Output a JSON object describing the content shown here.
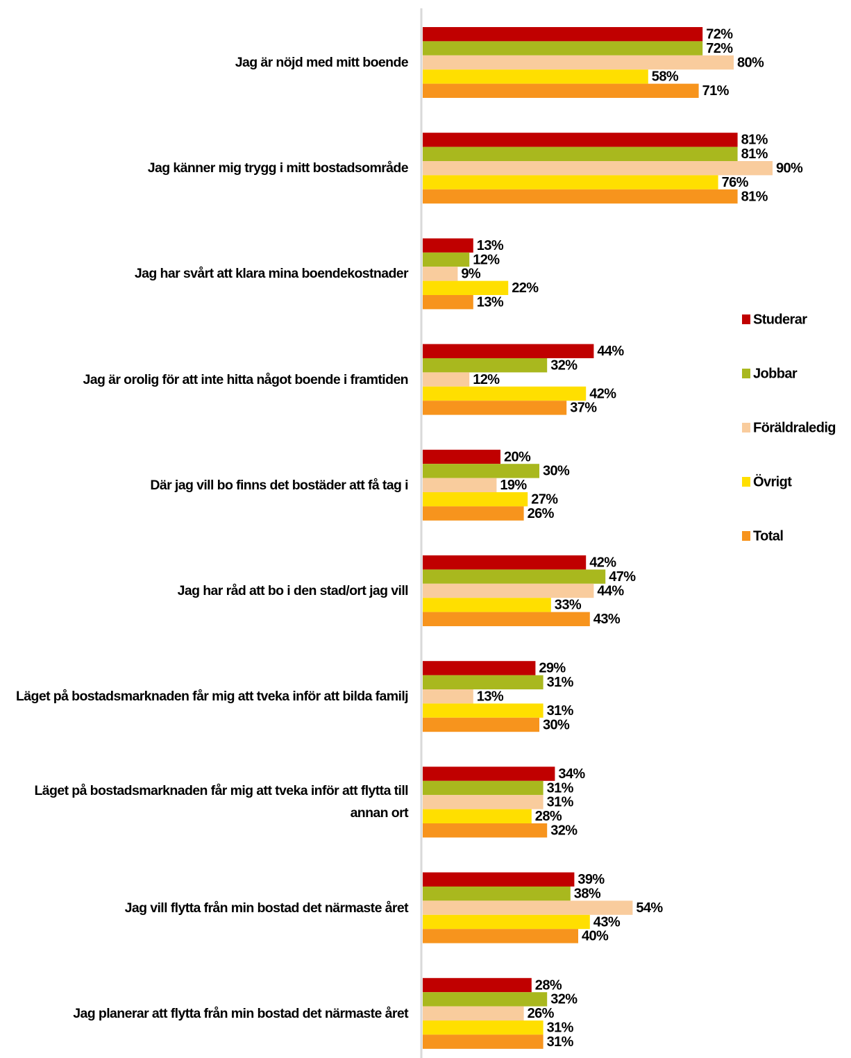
{
  "chart_data": {
    "type": "bar",
    "orientation": "horizontal",
    "categories": [
      "Jag är nöjd med mitt boende",
      "Jag känner mig trygg i mitt bostadsområde",
      "Jag har svårt att klara mina boendekostnader",
      "Jag är orolig för att inte hitta något boende i framtiden",
      "Där jag vill bo finns det bostäder att få tag i",
      "Jag har råd att bo i den stad/ort jag vill",
      "Läget på bostadsmarknaden får mig att tveka inför att bilda familj",
      "Läget på bostadsmarknaden får mig att tveka inför att flytta till annan ort",
      "Jag vill flytta från min bostad det närmaste året",
      "Jag planerar att flytta från min bostad det närmaste året"
    ],
    "series": [
      {
        "name": "Studerar",
        "color": "#c00000",
        "values": [
          72,
          81,
          13,
          44,
          20,
          42,
          29,
          34,
          39,
          28
        ],
        "value_labels": [
          "72%",
          "81%",
          "13%",
          "44%",
          "20%",
          "42%",
          "29%",
          "34%",
          "39%",
          "28%"
        ]
      },
      {
        "name": "Jobbar",
        "color": "#a9b81e",
        "values": [
          72,
          81,
          12,
          32,
          30,
          47,
          31,
          31,
          38,
          32
        ],
        "value_labels": [
          "72%",
          "81%",
          "12%",
          "32%",
          "30%",
          "47%",
          "31%",
          "31%",
          "38%",
          "32%"
        ]
      },
      {
        "name": "Föräldraledig",
        "color": "#f9cc9d",
        "values": [
          80,
          90,
          9,
          12,
          19,
          44,
          13,
          31,
          54,
          26
        ],
        "value_labels": [
          "80%",
          "90%",
          "9%",
          "12%",
          "19%",
          "44%",
          "13%",
          "31%",
          "54%",
          "26%"
        ]
      },
      {
        "name": "Övrigt",
        "color": "#ffdf00",
        "values": [
          58,
          76,
          22,
          42,
          27,
          33,
          31,
          28,
          43,
          31
        ],
        "value_labels": [
          "58%",
          "76%",
          "22%",
          "42%",
          "27%",
          "33%",
          "31%",
          "28%",
          "43%",
          "31%"
        ]
      },
      {
        "name": "Total",
        "color": "#f7941d",
        "values": [
          71,
          81,
          13,
          37,
          26,
          43,
          30,
          32,
          40,
          31
        ],
        "value_labels": [
          "71%",
          "81%",
          "13%",
          "37%",
          "26%",
          "43%",
          "30%",
          "32%",
          "40%",
          "31%"
        ]
      }
    ],
    "legend": "right"
  }
}
